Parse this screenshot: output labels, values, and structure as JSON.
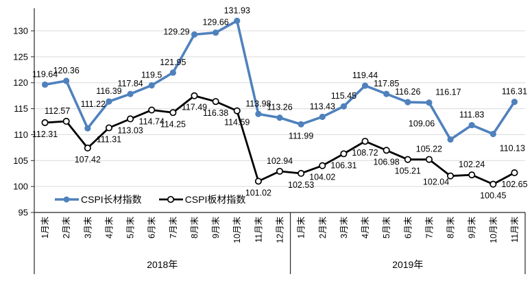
{
  "chart_data": {
    "type": "line",
    "title": "",
    "xlabel": "",
    "ylabel": "",
    "ylim": [
      95,
      132.5
    ],
    "y_ticks": [
      95,
      100,
      105,
      110,
      115,
      120,
      125,
      130
    ],
    "grid": true,
    "legend_position": "inside-bottom-left",
    "categories": [
      "1月末",
      "2月末",
      "3月末",
      "4月末",
      "5月末",
      "6月末",
      "7月末",
      "8月末",
      "9月末",
      "10月末",
      "11月末",
      "12月末",
      "1月末",
      "2月末",
      "3月末",
      "4月末",
      "5月末",
      "6月末",
      "7月末",
      "8月末",
      "9月末",
      "10月末",
      "11月末"
    ],
    "category_groups": [
      {
        "label": "2018年",
        "span": 12
      },
      {
        "label": "2019年",
        "span": 11
      }
    ],
    "series": [
      {
        "name": "CSPI长材指数",
        "color": "#4F81BD",
        "marker": "filled-circle",
        "values": [
          119.64,
          120.36,
          111.22,
          116.39,
          117.84,
          119.5,
          121.95,
          129.29,
          129.66,
          131.93,
          113.98,
          113.26,
          111.99,
          113.43,
          115.45,
          119.44,
          117.85,
          116.26,
          116.17,
          109.06,
          111.83,
          110.13,
          116.31
        ],
        "label_placement": "aaaaaaaaaaaabaaaaaaaaba",
        "label_offsets": {
          "2": [
            8,
            -20
          ],
          "7": [
            -26,
            11
          ],
          "18": [
            28,
            0
          ],
          "19": [
            -42,
            -8
          ],
          "21": [
            28,
            4
          ]
        }
      },
      {
        "name": "CSPI板材指数",
        "color": "#000000",
        "marker": "open-circle",
        "values": [
          112.31,
          112.57,
          107.42,
          111.31,
          113.03,
          114.74,
          114.25,
          117.49,
          116.38,
          114.59,
          101.02,
          102.94,
          102.53,
          104.02,
          106.31,
          108.72,
          106.98,
          105.21,
          105.22,
          102.04,
          102.24,
          100.45,
          102.65
        ],
        "label_placement": "babbbbbbbbbabbbbbbababb",
        "label_offsets": {
          "1": [
            -13,
            0
          ],
          "19": [
            -21,
            -8
          ]
        }
      }
    ],
    "colors": {
      "gridline": "#D9D9D9",
      "axis": "#262626",
      "label_text": "#000000"
    }
  }
}
